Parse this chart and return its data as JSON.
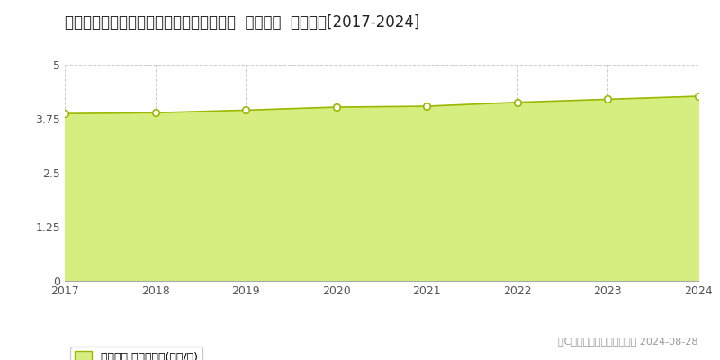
{
  "title": "鳥取県米子市西福原７丁目１０６２番１外  地価公示  地価推移[2017-2024]",
  "years": [
    2017,
    2018,
    2019,
    2020,
    2021,
    2022,
    2023,
    2024
  ],
  "values": [
    3.87,
    3.89,
    3.95,
    4.02,
    4.04,
    4.13,
    4.2,
    4.27
  ],
  "line_color": "#9ab800",
  "fill_color": "#d6ee80",
  "marker_facecolor": "#ffffff",
  "marker_edgecolor": "#9ab800",
  "background_color": "#ffffff",
  "grid_color": "#cccccc",
  "tick_color": "#555555",
  "ylim": [
    0,
    5
  ],
  "yticks": [
    0,
    1.25,
    2.5,
    3.75,
    5
  ],
  "ytick_labels": [
    "0",
    "1.25",
    "2.5",
    "3.75",
    "5"
  ],
  "legend_label": "地価公示 平均坪単価(万円/坪)",
  "copyright_text": "（C）土地価格ドットコム　 2024-08-28",
  "title_fontsize": 12,
  "tick_fontsize": 9,
  "legend_fontsize": 9,
  "copyright_fontsize": 8
}
